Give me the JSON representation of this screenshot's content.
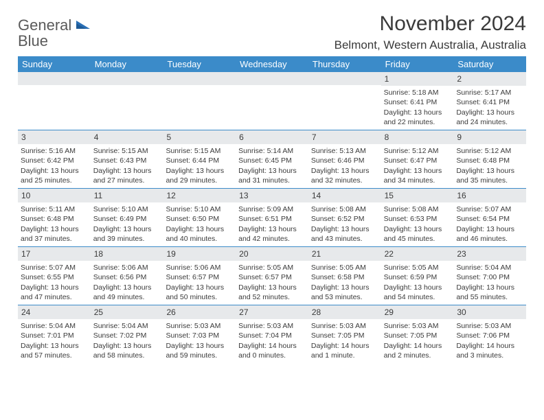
{
  "brand": {
    "part1": "General",
    "part2": "Blue"
  },
  "title": "November 2024",
  "location": "Belmont, Western Australia, Australia",
  "colors": {
    "header_bg": "#3b8bc9",
    "header_text": "#ffffff",
    "cell_band": "#e7e9eb",
    "rule": "#3b8bc9",
    "text": "#3a3a3a",
    "brand_gray": "#5a5a5a",
    "brand_blue": "#2a6fb5"
  },
  "day_names": [
    "Sunday",
    "Monday",
    "Tuesday",
    "Wednesday",
    "Thursday",
    "Friday",
    "Saturday"
  ],
  "weeks": [
    [
      {
        "n": "",
        "lines": []
      },
      {
        "n": "",
        "lines": []
      },
      {
        "n": "",
        "lines": []
      },
      {
        "n": "",
        "lines": []
      },
      {
        "n": "",
        "lines": []
      },
      {
        "n": "1",
        "lines": [
          "Sunrise: 5:18 AM",
          "Sunset: 6:41 PM",
          "Daylight: 13 hours and 22 minutes."
        ]
      },
      {
        "n": "2",
        "lines": [
          "Sunrise: 5:17 AM",
          "Sunset: 6:41 PM",
          "Daylight: 13 hours and 24 minutes."
        ]
      }
    ],
    [
      {
        "n": "3",
        "lines": [
          "Sunrise: 5:16 AM",
          "Sunset: 6:42 PM",
          "Daylight: 13 hours and 25 minutes."
        ]
      },
      {
        "n": "4",
        "lines": [
          "Sunrise: 5:15 AM",
          "Sunset: 6:43 PM",
          "Daylight: 13 hours and 27 minutes."
        ]
      },
      {
        "n": "5",
        "lines": [
          "Sunrise: 5:15 AM",
          "Sunset: 6:44 PM",
          "Daylight: 13 hours and 29 minutes."
        ]
      },
      {
        "n": "6",
        "lines": [
          "Sunrise: 5:14 AM",
          "Sunset: 6:45 PM",
          "Daylight: 13 hours and 31 minutes."
        ]
      },
      {
        "n": "7",
        "lines": [
          "Sunrise: 5:13 AM",
          "Sunset: 6:46 PM",
          "Daylight: 13 hours and 32 minutes."
        ]
      },
      {
        "n": "8",
        "lines": [
          "Sunrise: 5:12 AM",
          "Sunset: 6:47 PM",
          "Daylight: 13 hours and 34 minutes."
        ]
      },
      {
        "n": "9",
        "lines": [
          "Sunrise: 5:12 AM",
          "Sunset: 6:48 PM",
          "Daylight: 13 hours and 35 minutes."
        ]
      }
    ],
    [
      {
        "n": "10",
        "lines": [
          "Sunrise: 5:11 AM",
          "Sunset: 6:48 PM",
          "Daylight: 13 hours and 37 minutes."
        ]
      },
      {
        "n": "11",
        "lines": [
          "Sunrise: 5:10 AM",
          "Sunset: 6:49 PM",
          "Daylight: 13 hours and 39 minutes."
        ]
      },
      {
        "n": "12",
        "lines": [
          "Sunrise: 5:10 AM",
          "Sunset: 6:50 PM",
          "Daylight: 13 hours and 40 minutes."
        ]
      },
      {
        "n": "13",
        "lines": [
          "Sunrise: 5:09 AM",
          "Sunset: 6:51 PM",
          "Daylight: 13 hours and 42 minutes."
        ]
      },
      {
        "n": "14",
        "lines": [
          "Sunrise: 5:08 AM",
          "Sunset: 6:52 PM",
          "Daylight: 13 hours and 43 minutes."
        ]
      },
      {
        "n": "15",
        "lines": [
          "Sunrise: 5:08 AM",
          "Sunset: 6:53 PM",
          "Daylight: 13 hours and 45 minutes."
        ]
      },
      {
        "n": "16",
        "lines": [
          "Sunrise: 5:07 AM",
          "Sunset: 6:54 PM",
          "Daylight: 13 hours and 46 minutes."
        ]
      }
    ],
    [
      {
        "n": "17",
        "lines": [
          "Sunrise: 5:07 AM",
          "Sunset: 6:55 PM",
          "Daylight: 13 hours and 47 minutes."
        ]
      },
      {
        "n": "18",
        "lines": [
          "Sunrise: 5:06 AM",
          "Sunset: 6:56 PM",
          "Daylight: 13 hours and 49 minutes."
        ]
      },
      {
        "n": "19",
        "lines": [
          "Sunrise: 5:06 AM",
          "Sunset: 6:57 PM",
          "Daylight: 13 hours and 50 minutes."
        ]
      },
      {
        "n": "20",
        "lines": [
          "Sunrise: 5:05 AM",
          "Sunset: 6:57 PM",
          "Daylight: 13 hours and 52 minutes."
        ]
      },
      {
        "n": "21",
        "lines": [
          "Sunrise: 5:05 AM",
          "Sunset: 6:58 PM",
          "Daylight: 13 hours and 53 minutes."
        ]
      },
      {
        "n": "22",
        "lines": [
          "Sunrise: 5:05 AM",
          "Sunset: 6:59 PM",
          "Daylight: 13 hours and 54 minutes."
        ]
      },
      {
        "n": "23",
        "lines": [
          "Sunrise: 5:04 AM",
          "Sunset: 7:00 PM",
          "Daylight: 13 hours and 55 minutes."
        ]
      }
    ],
    [
      {
        "n": "24",
        "lines": [
          "Sunrise: 5:04 AM",
          "Sunset: 7:01 PM",
          "Daylight: 13 hours and 57 minutes."
        ]
      },
      {
        "n": "25",
        "lines": [
          "Sunrise: 5:04 AM",
          "Sunset: 7:02 PM",
          "Daylight: 13 hours and 58 minutes."
        ]
      },
      {
        "n": "26",
        "lines": [
          "Sunrise: 5:03 AM",
          "Sunset: 7:03 PM",
          "Daylight: 13 hours and 59 minutes."
        ]
      },
      {
        "n": "27",
        "lines": [
          "Sunrise: 5:03 AM",
          "Sunset: 7:04 PM",
          "Daylight: 14 hours and 0 minutes."
        ]
      },
      {
        "n": "28",
        "lines": [
          "Sunrise: 5:03 AM",
          "Sunset: 7:05 PM",
          "Daylight: 14 hours and 1 minute."
        ]
      },
      {
        "n": "29",
        "lines": [
          "Sunrise: 5:03 AM",
          "Sunset: 7:05 PM",
          "Daylight: 14 hours and 2 minutes."
        ]
      },
      {
        "n": "30",
        "lines": [
          "Sunrise: 5:03 AM",
          "Sunset: 7:06 PM",
          "Daylight: 14 hours and 3 minutes."
        ]
      }
    ]
  ]
}
